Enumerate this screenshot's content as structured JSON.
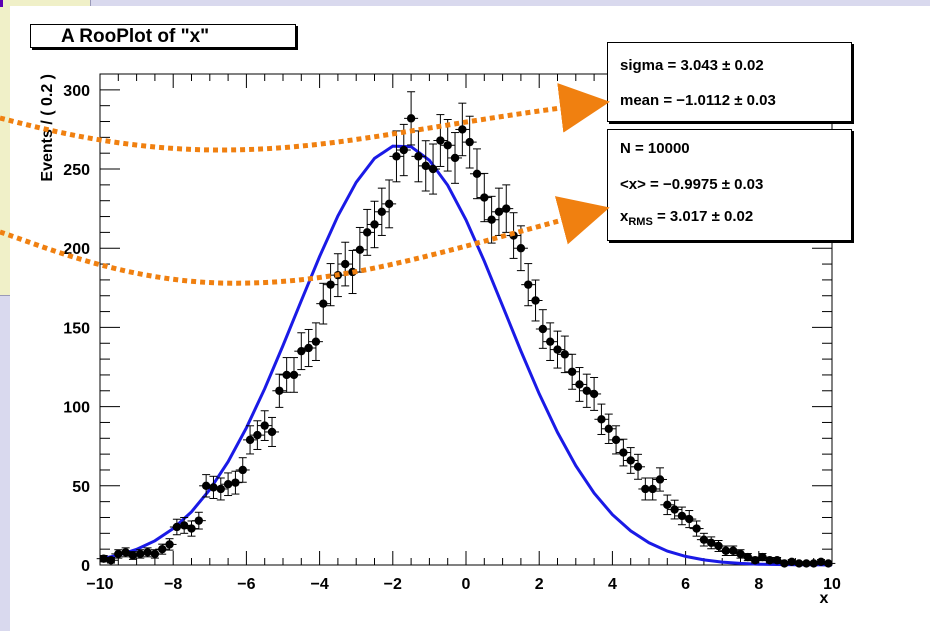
{
  "window": {
    "side_panel": "",
    "colors": {
      "background": "#d9d9ee",
      "side_panel": "#f0f0c8",
      "accent": "#5b00b3",
      "annotation_arrow": "#f08010"
    }
  },
  "plot_title": "A RooPlot of \"x\"",
  "fit_params": {
    "sigma_label": "sigma =  3.043   ± 0.02",
    "mean_label": "mean = −1.0112  ± 0.03"
  },
  "stats": {
    "n_label": "N =  10000",
    "mean_label": "<x> = −0.9975  ± 0.03",
    "rms_prefix": "x",
    "rms_sub": "RMS",
    "rms_value": " =  3.017  ± 0.02"
  },
  "chart_data": {
    "type": "scatter",
    "title": "A RooPlot of \"x\"",
    "xlabel": "x",
    "ylabel": "Events / ( 0.2 )",
    "xlim": [
      -10,
      10
    ],
    "ylim": [
      0,
      310
    ],
    "x_ticks": [
      "−10",
      "−8",
      "−6",
      "−4",
      "−2",
      "0",
      "2",
      "4",
      "6",
      "8",
      "10"
    ],
    "x_tick_values": [
      -10,
      -8,
      -6,
      -4,
      -2,
      0,
      2,
      4,
      6,
      8,
      10
    ],
    "y_ticks": [
      "0",
      "50",
      "100",
      "150",
      "200",
      "250",
      "300"
    ],
    "y_tick_values": [
      0,
      50,
      100,
      150,
      200,
      250,
      300
    ],
    "grid": false,
    "series": [
      {
        "type": "points_with_errors",
        "color": "#000000",
        "x": [
          -9.9,
          -9.7,
          -9.5,
          -9.3,
          -9.1,
          -8.9,
          -8.7,
          -8.5,
          -8.3,
          -8.1,
          -7.9,
          -7.7,
          -7.5,
          -7.3,
          -7.1,
          -6.9,
          -6.7,
          -6.5,
          -6.3,
          -6.1,
          -5.9,
          -5.7,
          -5.5,
          -5.3,
          -5.1,
          -4.9,
          -4.7,
          -4.5,
          -4.3,
          -4.1,
          -3.9,
          -3.7,
          -3.5,
          -3.3,
          -3.1,
          -2.9,
          -2.7,
          -2.5,
          -2.3,
          -2.1,
          -1.9,
          -1.7,
          -1.5,
          -1.3,
          -1.1,
          -0.9,
          -0.7,
          -0.5,
          -0.3,
          -0.1,
          0.1,
          0.3,
          0.5,
          0.7,
          0.9,
          1.1,
          1.3,
          1.5,
          1.7,
          1.9,
          2.1,
          2.3,
          2.5,
          2.7,
          2.9,
          3.1,
          3.3,
          3.5,
          3.7,
          3.9,
          4.1,
          4.3,
          4.5,
          4.7,
          4.9,
          5.1,
          5.3,
          5.5,
          5.7,
          5.9,
          6.1,
          6.3,
          6.5,
          6.7,
          6.9,
          7.1,
          7.3,
          7.5,
          7.7,
          7.9,
          8.1,
          8.3,
          8.5,
          8.7,
          8.9,
          9.1,
          9.3,
          9.5,
          9.7,
          9.9
        ],
        "y": [
          4,
          3,
          7,
          8,
          6,
          7,
          8,
          7,
          10,
          13,
          24,
          25,
          23,
          28,
          50,
          49,
          48,
          51,
          52,
          60,
          79,
          82,
          88,
          84,
          110,
          120,
          120,
          135,
          137,
          141,
          165,
          177,
          183,
          190,
          185,
          199,
          210,
          215,
          223,
          228,
          258,
          262,
          282,
          258,
          252,
          250,
          268,
          265,
          257,
          275,
          267,
          247,
          232,
          218,
          223,
          225,
          208,
          200,
          177,
          167,
          149,
          141,
          136,
          133,
          122,
          114,
          110,
          108,
          92,
          86,
          79,
          71,
          66,
          62,
          48,
          48,
          54,
          38,
          35,
          31,
          29,
          23,
          16,
          14,
          12,
          9,
          9,
          7,
          5,
          3,
          5,
          3,
          3,
          1,
          2,
          1,
          1,
          1,
          2,
          1
        ]
      },
      {
        "type": "line",
        "name": "",
        "color": "#1a1ae6",
        "note_type": "gaussian fit curve",
        "x": [
          -10,
          -9.5,
          -9,
          -8.5,
          -8,
          -7.5,
          -7,
          -6.5,
          -6,
          -5.5,
          -5,
          -4.5,
          -4,
          -3.5,
          -3,
          -2.5,
          -2,
          -1.5,
          -1,
          -0.5,
          0,
          0.5,
          1,
          1.5,
          2,
          2.5,
          3,
          3.5,
          4,
          4.5,
          5,
          5.5,
          6,
          6.5,
          7,
          7.5,
          8,
          8.5,
          9,
          9.5,
          10
        ],
        "y": [
          3.8,
          6.2,
          9.9,
          15.3,
          23,
          33.6,
          47.6,
          65.2,
          86.6,
          111.3,
          138.6,
          166.9,
          194.8,
          220.4,
          241.6,
          256.7,
          264.5,
          264.1,
          255.5,
          239.7,
          217.9,
          191.8,
          163.6,
          135.1,
          108.1,
          83.7,
          62.7,
          45.4,
          31.8,
          21.5,
          14,
          8.8,
          5.4,
          3.2,
          1.8,
          1,
          0.5,
          0.3,
          0.1,
          0.1,
          0
        ]
      }
    ]
  }
}
